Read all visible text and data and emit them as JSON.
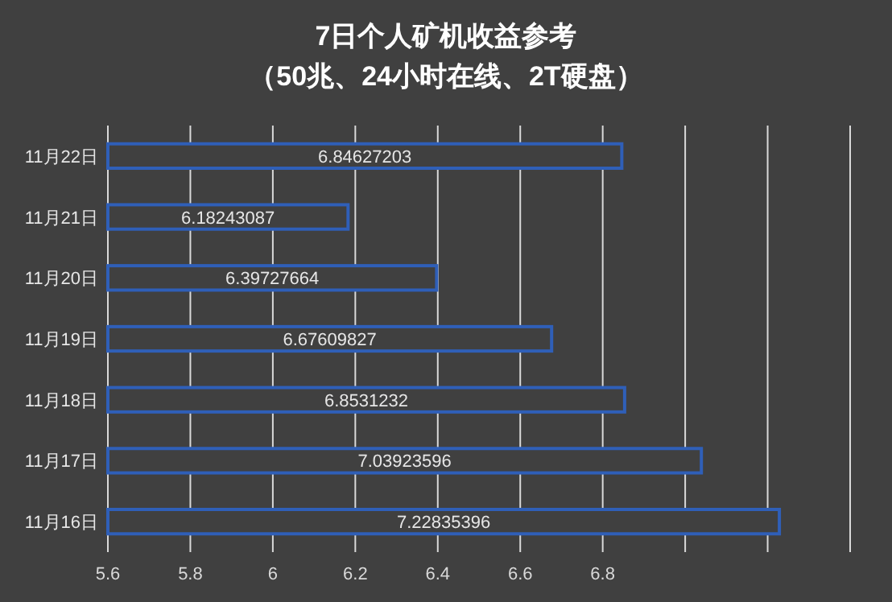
{
  "chart_data": {
    "type": "bar",
    "orientation": "horizontal",
    "title": "7日个人矿机收益参考",
    "subtitle": "（50兆、24小时在线、2T硬盘）",
    "categories": [
      "11月22日",
      "11月21日",
      "11月20日",
      "11月19日",
      "11月18日",
      "11月17日",
      "11月16日"
    ],
    "values": [
      6.84627203,
      6.18243087,
      6.39727664,
      6.67609827,
      6.8531232,
      7.03923596,
      7.22835396
    ],
    "color": "#2f5fb8",
    "xlim": [
      5.6,
      7.4
    ],
    "xticks": [
      5.6,
      5.8,
      6,
      6.2,
      6.4,
      6.6,
      6.8,
      {
        "value": 7,
        "label": null
      },
      {
        "value": 7.2,
        "label": null
      },
      {
        "value": 7.4,
        "label": null
      }
    ],
    "grid": "x",
    "data_labels": true
  }
}
